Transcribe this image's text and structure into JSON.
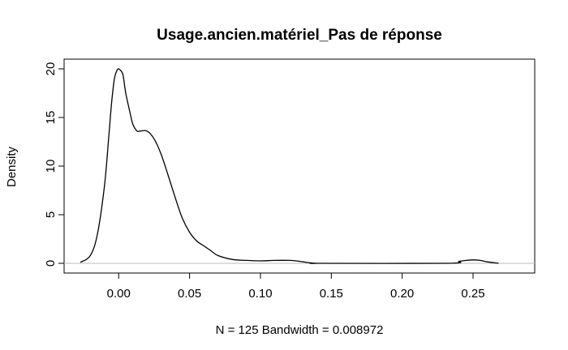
{
  "chart_data": {
    "type": "line",
    "title": "Usage.ancien.matériel_Pas de réponse",
    "xlabel": "N = 125   Bandwidth = 0.008972",
    "ylabel": "Density",
    "xlim": [
      -0.0385,
      0.2935
    ],
    "ylim": [
      -1.0,
      21.0
    ],
    "x_ticks": [
      "0.00",
      "0.05",
      "0.10",
      "0.15",
      "0.20",
      "0.25"
    ],
    "y_ticks": [
      "0",
      "5",
      "10",
      "15",
      "20"
    ],
    "baseline": 0,
    "grid": false,
    "legend": "none",
    "series": [
      {
        "x": [
          -0.027,
          -0.02,
          -0.015,
          -0.01,
          -0.007,
          -0.005,
          -0.003,
          -0.001,
          0.0,
          0.001,
          0.003,
          0.005,
          0.008,
          0.01,
          0.013,
          0.015,
          0.02,
          0.025,
          0.03,
          0.035,
          0.04,
          0.045,
          0.05,
          0.055,
          0.06,
          0.065,
          0.07,
          0.08,
          0.09,
          0.1,
          0.11,
          0.12,
          0.125,
          0.13,
          0.135,
          0.14,
          0.142,
          0.232,
          0.24,
          0.245,
          0.25,
          0.255,
          0.26,
          0.268
        ],
        "y": [
          0.1,
          0.8,
          3.0,
          8.0,
          13.0,
          16.5,
          19.0,
          19.9,
          20.0,
          19.9,
          19.4,
          17.5,
          15.5,
          14.3,
          13.6,
          13.6,
          13.6,
          12.8,
          11.2,
          9.0,
          6.7,
          4.6,
          3.2,
          2.3,
          1.8,
          1.3,
          0.8,
          0.4,
          0.3,
          0.25,
          0.3,
          0.3,
          0.25,
          0.15,
          0.05,
          0.0,
          0.0,
          0.0,
          0.2,
          0.3,
          0.35,
          0.3,
          0.15,
          0.0
        ]
      }
    ]
  }
}
